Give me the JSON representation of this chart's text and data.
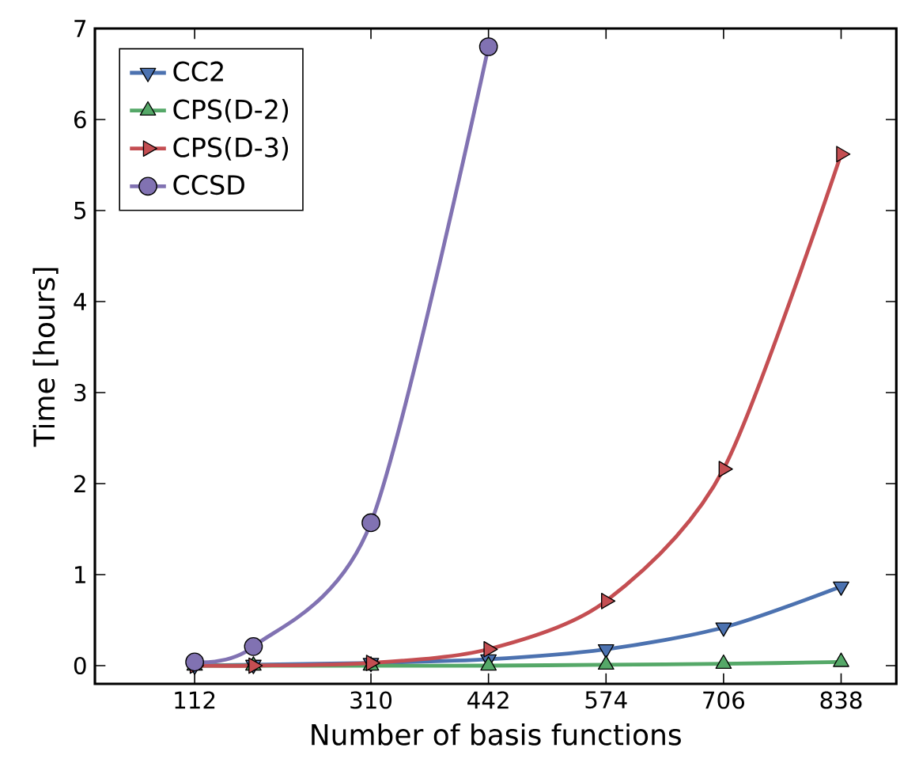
{
  "chart_data": {
    "type": "line",
    "xlabel": "Number of basis functions",
    "ylabel": "Time [hours]",
    "xlim": [
      0,
      900
    ],
    "xticks": [
      112,
      310,
      442,
      574,
      706,
      838
    ],
    "ylim": [
      -0.2,
      7
    ],
    "yticks": [
      0,
      1,
      2,
      3,
      4,
      5,
      6,
      7
    ],
    "grid": false,
    "legend": "top left",
    "series": [
      {
        "name": "CC2",
        "color": "#4c72b0",
        "marker": "triangle_down",
        "x": [
          112,
          178,
          310,
          442,
          574,
          706,
          838
        ],
        "values": [
          0.0,
          0.01,
          0.03,
          0.07,
          0.18,
          0.42,
          0.87
        ]
      },
      {
        "name": "CPS(D-2)",
        "color": "#55a868",
        "marker": "triangle",
        "x": [
          112,
          178,
          310,
          442,
          574,
          706,
          838
        ],
        "values": [
          0.0,
          0.0,
          0.0,
          0.0,
          0.01,
          0.02,
          0.04
        ]
      },
      {
        "name": "CPS(D-3)",
        "color": "#c44e52",
        "marker": "triangle_right",
        "x": [
          112,
          178,
          310,
          442,
          574,
          706,
          838
        ],
        "values": [
          0.0,
          0.0,
          0.03,
          0.18,
          0.71,
          2.16,
          5.62
        ]
      },
      {
        "name": "CCSD",
        "color": "#8172b2",
        "marker": "circle",
        "x": [
          112,
          178,
          310,
          442
        ],
        "values": [
          0.04,
          0.21,
          1.57,
          6.8
        ]
      }
    ]
  }
}
